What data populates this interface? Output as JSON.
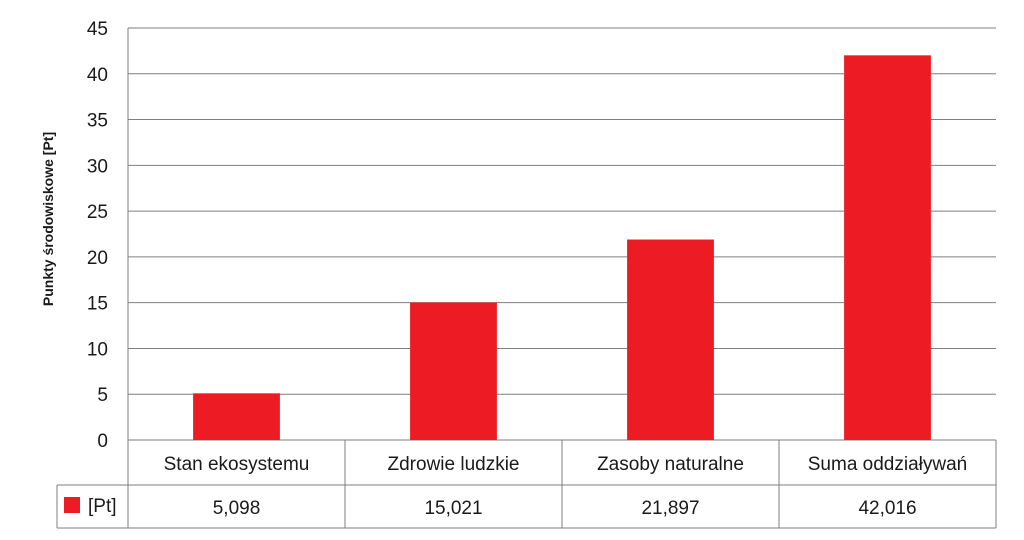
{
  "chart_data": {
    "type": "bar",
    "ylabel": "Punkty środowiskowe [Pt]",
    "xlabel": "",
    "ylim": [
      0,
      45
    ],
    "yticks": [
      0,
      5,
      10,
      15,
      20,
      25,
      30,
      35,
      40,
      45
    ],
    "categories": [
      "Stan ekosystemu",
      "Zdrowie ludzkie",
      "Zasoby naturalne",
      "Suma oddziaływań"
    ],
    "series": [
      {
        "name": "[Pt]",
        "color": "#ed1c24",
        "values": [
          5.098,
          15.021,
          21.897,
          42.016
        ],
        "value_labels": [
          "5,098",
          "15,021",
          "21,897",
          "42,016"
        ]
      }
    ],
    "grid": true,
    "legend": "data-table-left",
    "data_table": true
  }
}
